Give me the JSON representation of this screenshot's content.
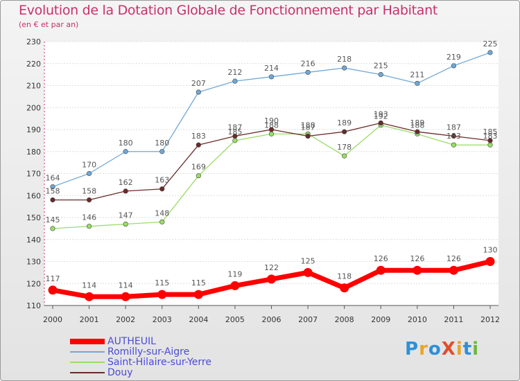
{
  "header": {
    "title": "Evolution de la Dotation Globale de Fonctionnement par Habitant",
    "subtitle": "(en € et par an)"
  },
  "logo": {
    "text": "ProXiti",
    "colors": [
      "#2f8fd8",
      "#e6a52e",
      "#2f8fd8",
      "#e04e2c",
      "#e6a52e",
      "#2f8fd8",
      "#6bb83a"
    ]
  },
  "chart_data": {
    "type": "line",
    "title": "Evolution de la Dotation Globale de Fonctionnement par Habitant",
    "subtitle": "(en € et par an)",
    "xlabel": "",
    "ylabel": "",
    "x": [
      "2000",
      "2001",
      "2002",
      "2003",
      "2004",
      "2005",
      "2006",
      "2007",
      "2008",
      "2009",
      "2010",
      "2011",
      "2012"
    ],
    "ylim": [
      110,
      230
    ],
    "yticks": [
      110,
      120,
      130,
      140,
      150,
      160,
      170,
      180,
      190,
      200,
      210,
      220,
      230
    ],
    "grid": "horizontal",
    "legend_position": "bottom-left",
    "series": [
      {
        "name": "AUTHEUIL",
        "color": "#ff0000",
        "values": [
          117,
          114,
          114,
          115,
          115,
          119,
          122,
          125,
          118,
          126,
          126,
          126,
          130
        ]
      },
      {
        "name": "Romilly-sur-Aigre",
        "color": "#6fa8d6",
        "values": [
          164,
          170,
          180,
          180,
          207,
          212,
          214,
          216,
          218,
          215,
          211,
          219,
          225
        ]
      },
      {
        "name": "Saint-Hilaire-sur-Yerre",
        "color": "#99dd66",
        "values": [
          145,
          146,
          147,
          148,
          169,
          185,
          188,
          188,
          178,
          192,
          188,
          183,
          183
        ]
      },
      {
        "name": "Douy",
        "color": "#6a2a2a",
        "values": [
          158,
          158,
          162,
          163,
          183,
          187,
          190,
          187,
          189,
          193,
          189,
          187,
          185
        ]
      }
    ]
  }
}
